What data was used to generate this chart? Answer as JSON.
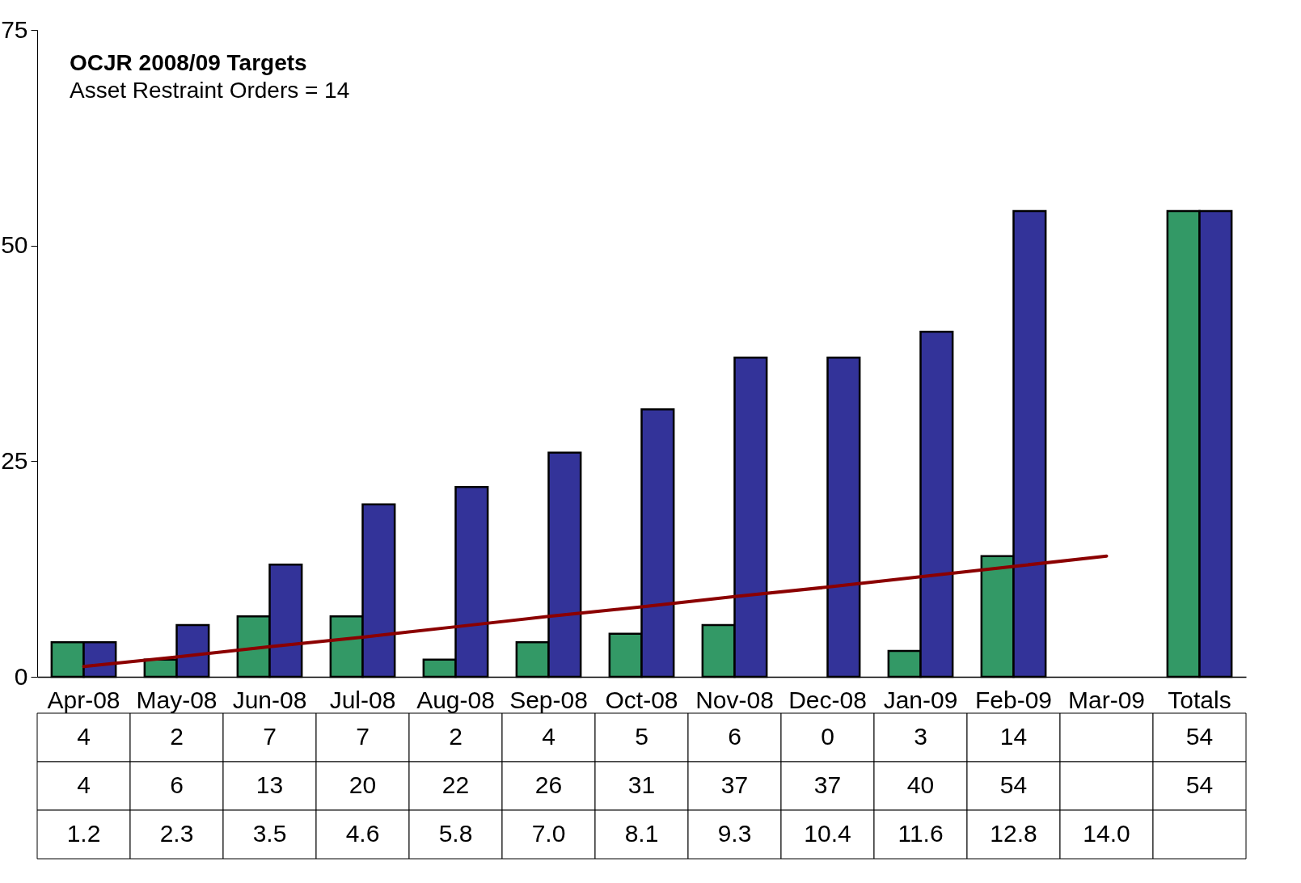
{
  "chart_data": {
    "type": "bar",
    "title": "OCJR 2008/09 Targets",
    "subtitle": "Asset Restraint Orders = 14",
    "categories": [
      "Apr-08",
      "May-08",
      "Jun-08",
      "Jul-08",
      "Aug-08",
      "Sep-08",
      "Oct-08",
      "Nov-08",
      "Dec-08",
      "Jan-09",
      "Feb-09",
      "Mar-09",
      "Totals"
    ],
    "series": [
      {
        "color": "#339966",
        "values": [
          4,
          2,
          7,
          7,
          2,
          4,
          5,
          6,
          0,
          3,
          14,
          null,
          54
        ]
      },
      {
        "color": "#333399",
        "values": [
          4,
          6,
          13,
          20,
          22,
          26,
          31,
          37,
          37,
          40,
          54,
          null,
          54
        ]
      },
      {
        "type": "line",
        "color": "#8b0000",
        "values": [
          1.2,
          2.3,
          3.5,
          4.6,
          5.8,
          7.0,
          8.1,
          9.3,
          10.4,
          11.6,
          12.8,
          14.0,
          null
        ],
        "value_labels": [
          "1.2",
          "2.3",
          "3.5",
          "4.6",
          "5.8",
          "7.0",
          "8.1",
          "9.3",
          "10.4",
          "11.6",
          "12.8",
          "14.0",
          null
        ]
      }
    ],
    "data_labels": true,
    "ylim": [
      0,
      75
    ],
    "yticks": [
      0,
      25,
      50,
      75
    ],
    "grid": false,
    "legend": false
  }
}
